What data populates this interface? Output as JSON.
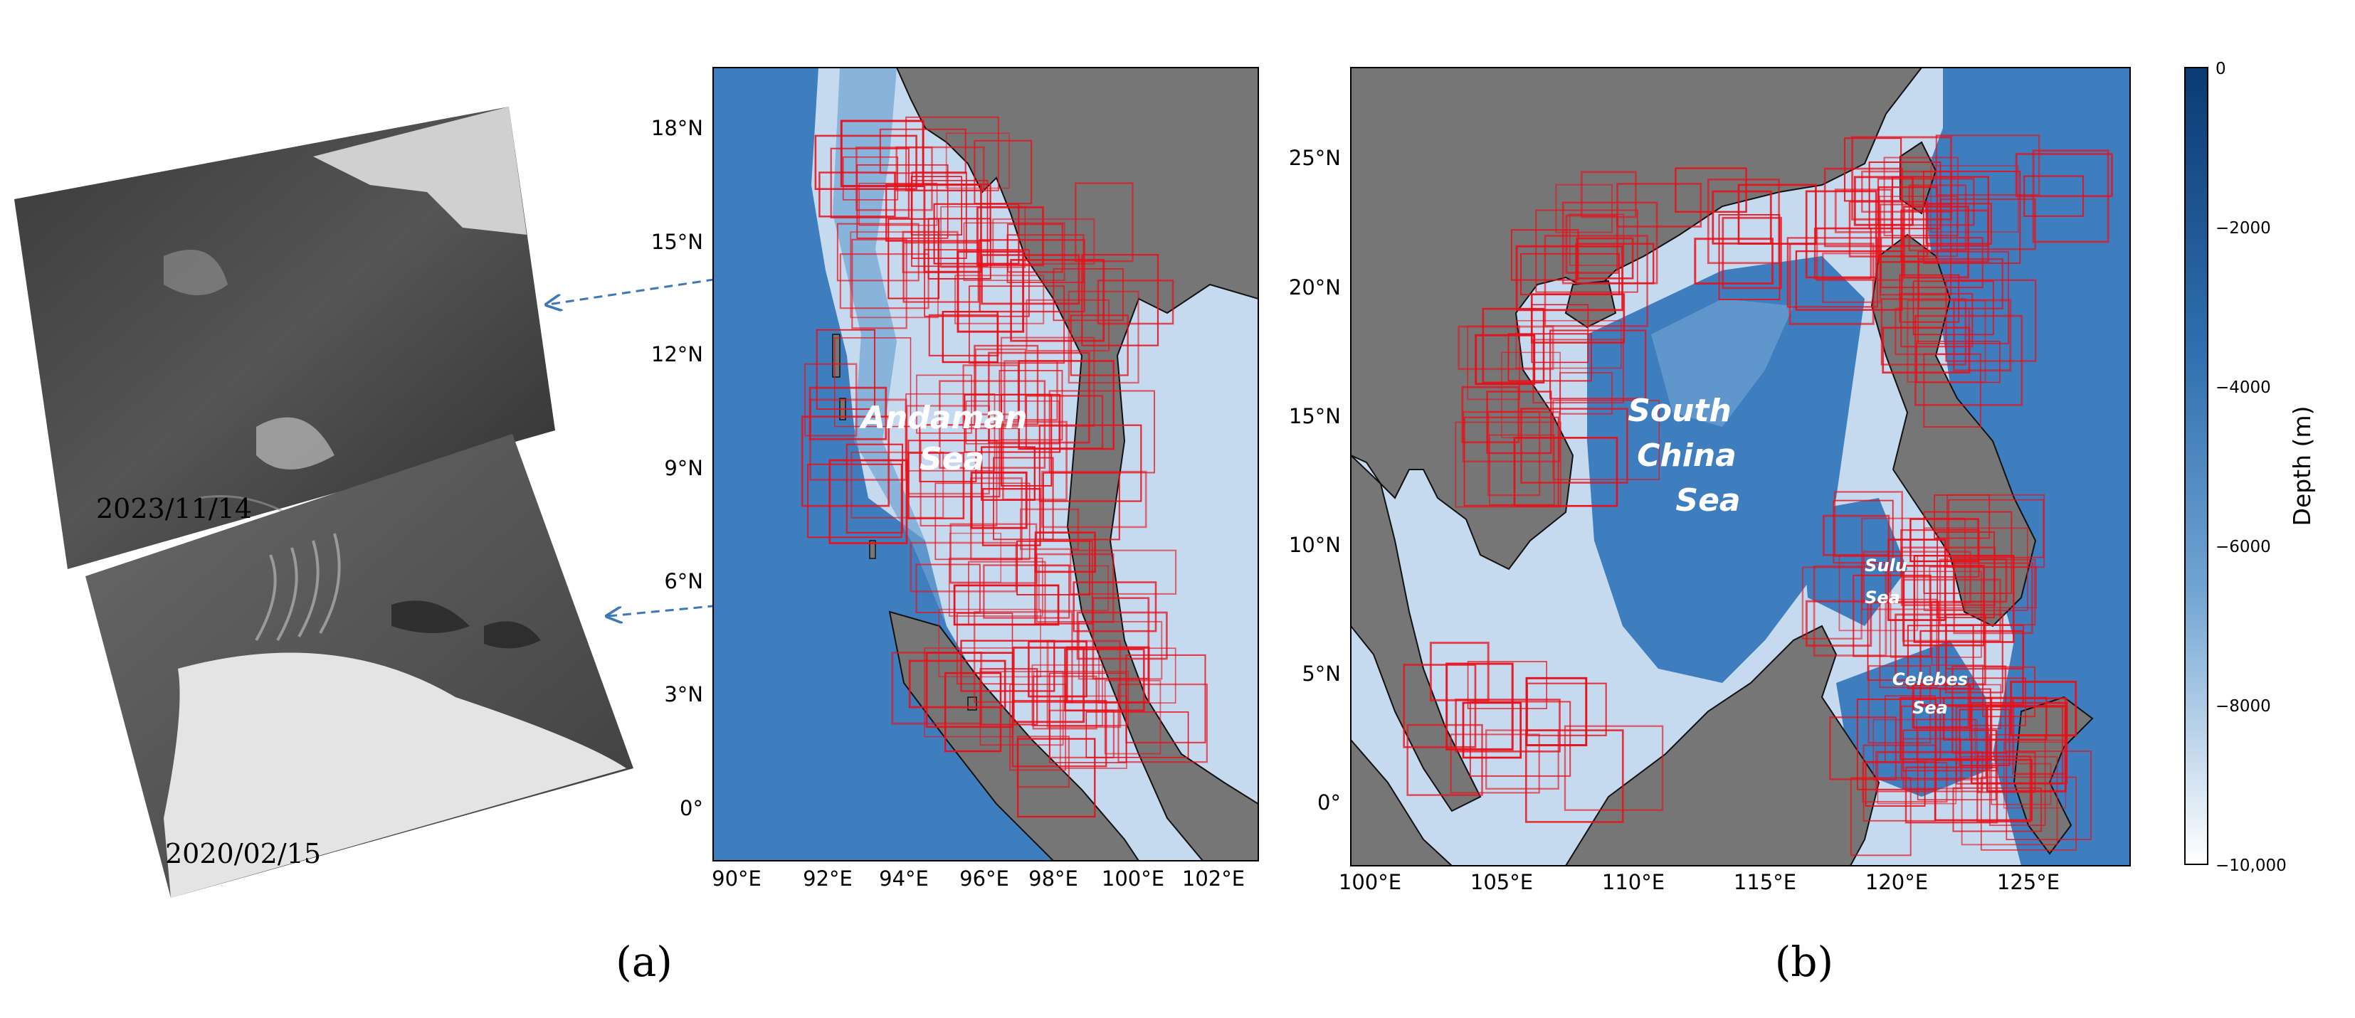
{
  "panels": {
    "sar": {
      "dates": [
        "2023/11/14",
        "2020/02/15"
      ]
    },
    "a": {
      "label": "(a)",
      "sea_name": [
        "Andaman",
        "Sea"
      ],
      "x_ticks": [
        "90°E",
        "92°E",
        "94°E",
        "96°E",
        "98°E",
        "100°E",
        "102°E"
      ],
      "y_ticks": [
        "18°N",
        "15°N",
        "12°N",
        "9°N",
        "6°N",
        "3°N",
        "0°"
      ],
      "lon_range": [
        89,
        104
      ],
      "lat_range": [
        -1.5,
        19.5
      ]
    },
    "b": {
      "label": "(b)",
      "sea_names": {
        "south_china": [
          "South",
          "China",
          "Sea"
        ],
        "sulu": [
          "Sulu",
          "Sea"
        ],
        "celebes": [
          "Celebes",
          "Sea"
        ]
      },
      "x_ticks": [
        "100°E",
        "105°E",
        "110°E",
        "115°E",
        "120°E",
        "125°E"
      ],
      "y_ticks": [
        "25°N",
        "20°N",
        "15°N",
        "10°N",
        "5°N",
        "0°"
      ],
      "lon_range": [
        99.5,
        129.5
      ],
      "lat_range": [
        -2.5,
        28.5
      ]
    }
  },
  "colorbar": {
    "title": "Depth (m)",
    "ticks": [
      "0",
      "−2000",
      "−4000",
      "−6000",
      "−8000",
      "−10,000"
    ],
    "color_top": "#0b3a73",
    "color_bottom": "#ffffff"
  },
  "colors": {
    "land": "#767676",
    "shallow": "#c5d9ef",
    "deep": "#3f7fbf",
    "box": "#e8101a"
  }
}
